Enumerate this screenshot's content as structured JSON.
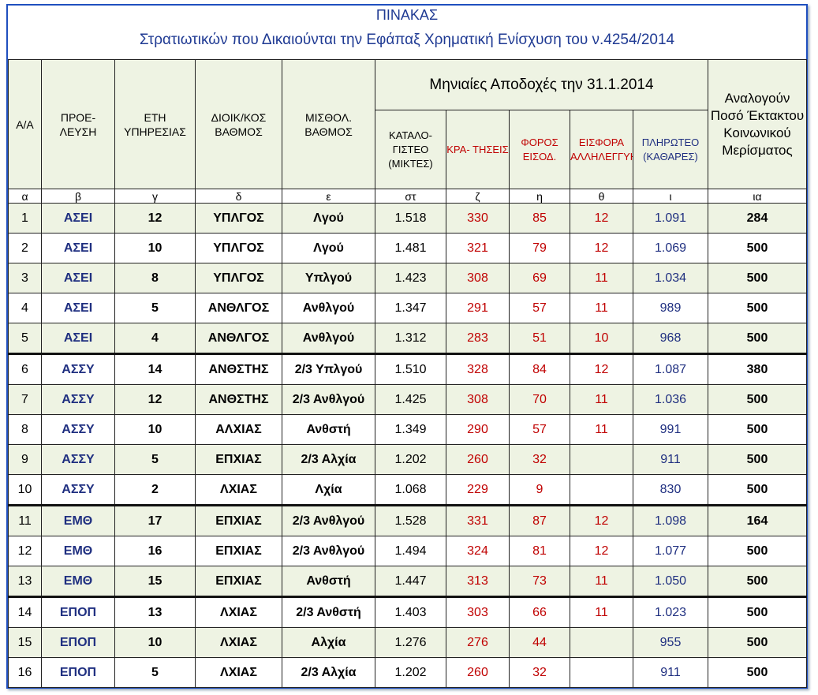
{
  "title": "ΠΙΝΑΚΑΣ",
  "subtitle": "Στρατιωτικών που Δικαιούνται την Εφάπαξ Χρηματική Ενίσχυση του ν.4254/2014",
  "table": {
    "header": {
      "cells": [
        "A/A",
        "ΠΡΟΕ- ΛΕΥΣΗ",
        "ΕΤΗ ΥΠΗΡΕΣΙΑΣ",
        "ΔΙΟΙΚ/ΚΟΣ ΒΑΘΜΟΣ",
        "ΜΙΣΘΟΛ. ΒΑΘΜΟΣ",
        "ΚΑΤΑΛΟ- ΓΙΣΤΕΟ (ΜΙΚΤΕΣ)",
        "ΚΡΑ- ΤΗΣΕΙΣ",
        "ΦΟΡΟΣ ΕΙΣΟΔ.",
        "ΕΙΣΦΟΡΑ ΑΛΛΗΛΕΓΓΥΗΣ",
        "ΠΛΗΡΩΤΕΟ (ΚΑΘΑΡΕΣ)",
        "Αναλογούν Ποσό Έκτακτου Κοινωνικού Μερίσματος"
      ],
      "group": "Μηνιαίες Αποδοχές την 31.1.2014"
    },
    "letters": [
      "α",
      "β",
      "γ",
      "δ",
      "ε",
      "στ",
      "ζ",
      "η",
      "θ",
      "ι",
      "ια"
    ],
    "rows": [
      [
        "1",
        "ΑΣΕΙ",
        "12",
        "ΥΠΛΓΟΣ",
        "Λγού",
        "1.518",
        "330",
        "85",
        "12",
        "1.091",
        "284"
      ],
      [
        "2",
        "ΑΣΕΙ",
        "10",
        "ΥΠΛΓΟΣ",
        "Λγού",
        "1.481",
        "321",
        "79",
        "12",
        "1.069",
        "500"
      ],
      [
        "3",
        "ΑΣΕΙ",
        "8",
        "ΥΠΛΓΟΣ",
        "Υπλγού",
        "1.423",
        "308",
        "69",
        "11",
        "1.034",
        "500"
      ],
      [
        "4",
        "ΑΣΕΙ",
        "5",
        "ΑΝΘΛΓΟΣ",
        "Ανθλγού",
        "1.347",
        "291",
        "57",
        "11",
        "989",
        "500"
      ],
      [
        "5",
        "ΑΣΕΙ",
        "4",
        "ΑΝΘΛΓΟΣ",
        "Ανθλγού",
        "1.312",
        "283",
        "51",
        "10",
        "968",
        "500"
      ],
      [
        "6",
        "ΑΣΣΥ",
        "14",
        "ΑΝΘΣΤΗΣ",
        "2/3 Υπλγού",
        "1.510",
        "328",
        "84",
        "12",
        "1.087",
        "380"
      ],
      [
        "7",
        "ΑΣΣΥ",
        "12",
        "ΑΝΘΣΤΗΣ",
        "2/3 Ανθλγού",
        "1.425",
        "308",
        "70",
        "11",
        "1.036",
        "500"
      ],
      [
        "8",
        "ΑΣΣΥ",
        "10",
        "ΑΛΧΙΑΣ",
        "Ανθστή",
        "1.349",
        "290",
        "57",
        "11",
        "991",
        "500"
      ],
      [
        "9",
        "ΑΣΣΥ",
        "5",
        "ΕΠΧΙΑΣ",
        "2/3 Αλχία",
        "1.202",
        "260",
        "32",
        null,
        "911",
        "500"
      ],
      [
        "10",
        "ΑΣΣΥ",
        "2",
        "ΛΧΙΑΣ",
        "Λχία",
        "1.068",
        "229",
        "9",
        null,
        "830",
        "500"
      ],
      [
        "11",
        "ΕΜΘ",
        "17",
        "ΕΠΧΙΑΣ",
        "2/3 Ανθλγού",
        "1.528",
        "331",
        "87",
        "12",
        "1.098",
        "164"
      ],
      [
        "12",
        "ΕΜΘ",
        "16",
        "ΕΠΧΙΑΣ",
        "2/3 Ανθλγού",
        "1.494",
        "324",
        "81",
        "12",
        "1.077",
        "500"
      ],
      [
        "13",
        "ΕΜΘ",
        "15",
        "ΕΠΧΙΑΣ",
        "Ανθστή",
        "1.447",
        "313",
        "73",
        "11",
        "1.050",
        "500"
      ],
      [
        "14",
        "ΕΠΟΠ",
        "13",
        "ΛΧΙΑΣ",
        "2/3 Ανθστή",
        "1.403",
        "303",
        "66",
        "11",
        "1.023",
        "500"
      ],
      [
        "15",
        "ΕΠΟΠ",
        "10",
        "ΛΧΙΑΣ",
        "Αλχία",
        "1.276",
        "276",
        "44",
        null,
        "955",
        "500"
      ],
      [
        "16",
        "ΕΠΟΠ",
        "5",
        "ΛΧΙΑΣ",
        "2/3 Αλχία",
        "1.202",
        "260",
        "32",
        null,
        "911",
        "500"
      ]
    ]
  }
}
